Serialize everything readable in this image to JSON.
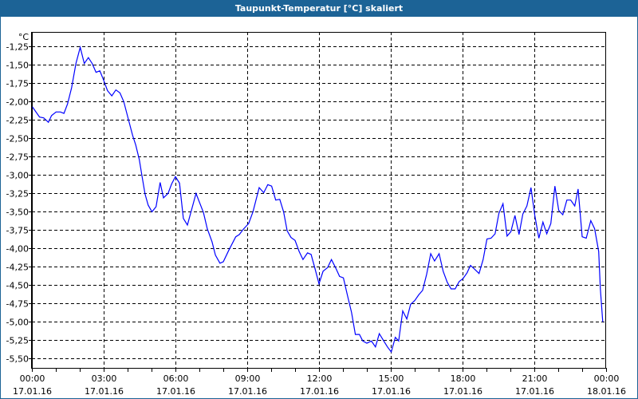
{
  "window": {
    "title": "Taupunkt-Temperatur [°C] skaliert"
  },
  "chart_data": {
    "type": "line",
    "title": "Taupunkt-Temperatur [°C] skaliert",
    "ylabel": "°C",
    "xlabel": "",
    "xlim": [
      0,
      24
    ],
    "ylim": [
      -5.625,
      -1.0
    ],
    "grid": true,
    "yticks": [
      -1.25,
      -1.5,
      -1.75,
      -2.0,
      -2.25,
      -2.5,
      -2.75,
      -3.0,
      -3.25,
      -3.5,
      -3.75,
      -4.0,
      -4.25,
      -4.5,
      -4.75,
      -5.0,
      -5.25,
      -5.5
    ],
    "ytick_labels": [
      "-1,25",
      "-1,50",
      "-1,75",
      "-2,00",
      "-2,25",
      "-2,50",
      "-2,75",
      "-3,00",
      "-3,25",
      "-3,50",
      "-3,75",
      "-4,00",
      "-4,25",
      "-4,50",
      "-4,75",
      "-5,00",
      "-5,25",
      "-5,50"
    ],
    "xticks": [
      0,
      3,
      6,
      9,
      12,
      15,
      18,
      21,
      24
    ],
    "xtick_labels": [
      {
        "time": "00:00",
        "date": "17.01.16"
      },
      {
        "time": "03:00",
        "date": "17.01.16"
      },
      {
        "time": "06:00",
        "date": "17.01.16"
      },
      {
        "time": "09:00",
        "date": "17.01.16"
      },
      {
        "time": "12:00",
        "date": "17.01.16"
      },
      {
        "time": "15:00",
        "date": "17.01.16"
      },
      {
        "time": "18:00",
        "date": "17.01.16"
      },
      {
        "time": "21:00",
        "date": "17.01.16"
      },
      {
        "time": "00:00",
        "date": "18.01.16"
      }
    ],
    "series": [
      {
        "name": "Taupunkt-Temperatur",
        "color": "#0000ff",
        "x": [
          0.02,
          0.32,
          0.49,
          0.69,
          0.82,
          1.01,
          1.19,
          1.34,
          1.49,
          1.66,
          1.84,
          2.02,
          2.19,
          2.36,
          2.52,
          2.68,
          2.84,
          2.99,
          3.16,
          3.34,
          3.51,
          3.68,
          3.84,
          4.04,
          4.21,
          4.34,
          4.49,
          4.6,
          4.73,
          4.86,
          5.02,
          5.19,
          5.36,
          5.5,
          5.69,
          5.84,
          6.0,
          6.17,
          6.33,
          6.5,
          6.86,
          7.17,
          7.33,
          7.53,
          7.67,
          7.86,
          8.0,
          8.22,
          8.52,
          8.67,
          8.83,
          9.06,
          9.24,
          9.5,
          9.69,
          9.86,
          10.02,
          10.19,
          10.36,
          10.52,
          10.67,
          10.83,
          11.0,
          11.17,
          11.33,
          11.52,
          11.67,
          11.83,
          12.0,
          12.17,
          12.36,
          12.52,
          12.69,
          12.86,
          13.02,
          13.19,
          13.36,
          13.52,
          13.69,
          13.83,
          14.0,
          14.19,
          14.36,
          14.52,
          14.69,
          14.86,
          15.02,
          15.19,
          15.33,
          15.5,
          15.67,
          15.83,
          16.0,
          16.17,
          16.33,
          16.5,
          16.67,
          16.83,
          17.02,
          17.19,
          17.36,
          17.52,
          17.69,
          17.86,
          18.02,
          18.19,
          18.33,
          18.5,
          18.69,
          18.86,
          19.02,
          19.19,
          19.36,
          19.52,
          19.69,
          19.86,
          20.02,
          20.19,
          20.36,
          20.52,
          20.69,
          20.86,
          21.02,
          21.19,
          21.36,
          21.52,
          21.69,
          21.86,
          22.02,
          22.19,
          22.36,
          22.52,
          22.69,
          22.83,
          23.0,
          23.17,
          23.36,
          23.52,
          23.69,
          23.76,
          23.86
        ],
        "y": [
          -2.08,
          -2.22,
          -2.23,
          -2.29,
          -2.2,
          -2.15,
          -2.15,
          -2.17,
          -2.04,
          -1.82,
          -1.49,
          -1.27,
          -1.49,
          -1.41,
          -1.49,
          -1.61,
          -1.59,
          -1.71,
          -1.86,
          -1.93,
          -1.85,
          -1.89,
          -2.01,
          -2.26,
          -2.47,
          -2.6,
          -2.8,
          -3.02,
          -3.27,
          -3.42,
          -3.51,
          -3.44,
          -3.11,
          -3.32,
          -3.26,
          -3.13,
          -3.03,
          -3.12,
          -3.6,
          -3.69,
          -3.26,
          -3.52,
          -3.74,
          -3.92,
          -4.1,
          -4.21,
          -4.19,
          -4.04,
          -3.85,
          -3.82,
          -3.75,
          -3.67,
          -3.51,
          -3.18,
          -3.25,
          -3.14,
          -3.16,
          -3.35,
          -3.34,
          -3.51,
          -3.77,
          -3.86,
          -3.9,
          -4.05,
          -4.16,
          -4.07,
          -4.09,
          -4.28,
          -4.49,
          -4.32,
          -4.27,
          -4.16,
          -4.27,
          -4.39,
          -4.41,
          -4.65,
          -4.88,
          -5.18,
          -5.18,
          -5.27,
          -5.3,
          -5.27,
          -5.35,
          -5.17,
          -5.26,
          -5.35,
          -5.42,
          -5.22,
          -5.27,
          -4.86,
          -4.97,
          -4.77,
          -4.72,
          -4.64,
          -4.58,
          -4.36,
          -4.08,
          -4.18,
          -4.08,
          -4.32,
          -4.47,
          -4.56,
          -4.56,
          -4.46,
          -4.42,
          -4.34,
          -4.24,
          -4.29,
          -4.35,
          -4.16,
          -3.88,
          -3.87,
          -3.81,
          -3.53,
          -3.4,
          -3.84,
          -3.78,
          -3.56,
          -3.82,
          -3.54,
          -3.43,
          -3.18,
          -3.56,
          -3.87,
          -3.65,
          -3.81,
          -3.67,
          -3.16,
          -3.49,
          -3.55,
          -3.35,
          -3.35,
          -3.43,
          -3.2,
          -3.85,
          -3.87,
          -3.63,
          -3.74,
          -4.05,
          -4.56,
          -5.01
        ]
      }
    ]
  }
}
